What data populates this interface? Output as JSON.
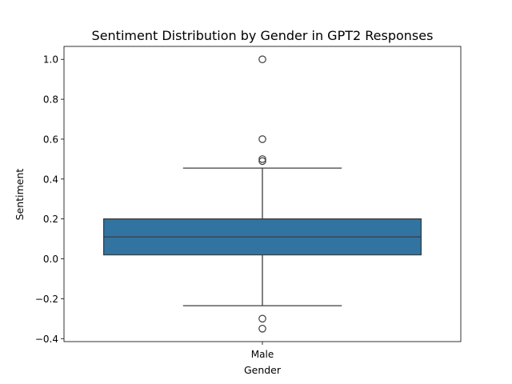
{
  "chart_data": {
    "type": "box",
    "title": "Sentiment Distribution by Gender in GPT2 Responses",
    "xlabel": "Gender",
    "ylabel": "Sentiment",
    "categories": [
      "Male"
    ],
    "ylim": [
      -0.415,
      1.065
    ],
    "yticks": [
      -0.4,
      -0.2,
      0.0,
      0.2,
      0.4,
      0.6,
      0.8,
      1.0
    ],
    "ytick_labels": [
      "−0.4",
      "−0.2",
      "0.0",
      "0.2",
      "0.4",
      "0.6",
      "0.8",
      "1.0"
    ],
    "grid": false,
    "box_color": "#3274a1",
    "boxes": [
      {
        "category": "Male",
        "q1": 0.02,
        "median": 0.11,
        "q3": 0.2,
        "whisker_low": -0.235,
        "whisker_high": 0.455,
        "outliers": [
          1.0,
          0.6,
          0.5,
          0.49,
          -0.3,
          -0.35
        ]
      }
    ]
  }
}
